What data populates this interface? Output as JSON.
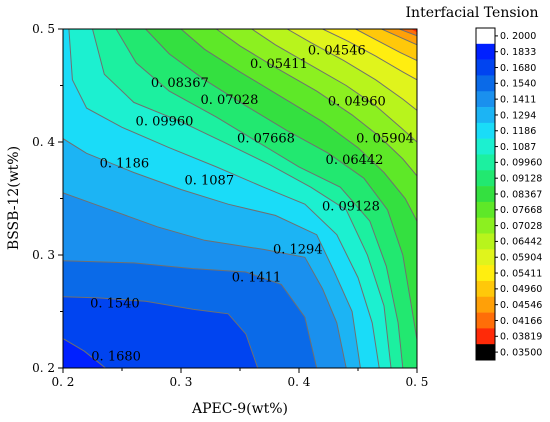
{
  "chart_data": {
    "type": "contour",
    "xlabel": "APEC-9(wt%)",
    "ylabel": "BSSB-12(wt%)",
    "xlim": [
      0.2,
      0.5
    ],
    "ylim": [
      0.2,
      0.5
    ],
    "x_ticks": [
      "0. 2",
      "0. 3",
      "0. 4",
      "0. 5"
    ],
    "y_ticks": [
      "0. 2",
      "0. 3",
      "0. 4",
      "0. 5"
    ],
    "legend_title": "Interfacial Tension",
    "legend_levels": [
      {
        "label": "0. 2000",
        "color": "#ffffff"
      },
      {
        "label": "0. 1833",
        "color": "#0020ff"
      },
      {
        "label": "0. 1680",
        "color": "#0044f0"
      },
      {
        "label": "0. 1540",
        "color": "#0a6ae8"
      },
      {
        "label": "0. 1411",
        "color": "#1a90ee"
      },
      {
        "label": "0. 1294",
        "color": "#1cb4f4"
      },
      {
        "label": "0. 1186",
        "color": "#1adcf8"
      },
      {
        "label": "0. 1087",
        "color": "#1cf0d0"
      },
      {
        "label": "0. 09960",
        "color": "#1cf0a0"
      },
      {
        "label": "0. 09128",
        "color": "#22e870"
      },
      {
        "label": "0. 08367",
        "color": "#34e040"
      },
      {
        "label": "0. 07668",
        "color": "#5ee828"
      },
      {
        "label": "0. 07028",
        "color": "#8cf020"
      },
      {
        "label": "0. 06442",
        "color": "#b8f41c"
      },
      {
        "label": "0. 05904",
        "color": "#e0f41c"
      },
      {
        "label": "0. 05411",
        "color": "#ffee10"
      },
      {
        "label": "0. 04960",
        "color": "#ffc80a"
      },
      {
        "label": "0. 04546",
        "color": "#ffa008"
      },
      {
        "label": "0. 04166",
        "color": "#ff6e08"
      },
      {
        "label": "0. 03819",
        "color": "#ff2a08"
      },
      {
        "label": "0. 03500",
        "color": "#000000"
      }
    ],
    "contour_labels": [
      {
        "text": "0. 04546",
        "x": 0.432,
        "y": 0.481
      },
      {
        "text": "0. 05411",
        "x": 0.383,
        "y": 0.469
      },
      {
        "text": "0. 08367",
        "x": 0.299,
        "y": 0.452
      },
      {
        "text": "0. 04960",
        "x": 0.449,
        "y": 0.436
      },
      {
        "text": "0. 07028",
        "x": 0.341,
        "y": 0.437
      },
      {
        "text": "0. 09960",
        "x": 0.286,
        "y": 0.418
      },
      {
        "text": "0. 07668",
        "x": 0.372,
        "y": 0.403
      },
      {
        "text": "0. 05904",
        "x": 0.473,
        "y": 0.403
      },
      {
        "text": "0. 06442",
        "x": 0.447,
        "y": 0.384
      },
      {
        "text": "0. 1186",
        "x": 0.252,
        "y": 0.381
      },
      {
        "text": "0. 1087",
        "x": 0.324,
        "y": 0.366
      },
      {
        "text": "0. 09128",
        "x": 0.444,
        "y": 0.343
      },
      {
        "text": "0. 1294",
        "x": 0.399,
        "y": 0.305
      },
      {
        "text": "0. 1411",
        "x": 0.364,
        "y": 0.28
      },
      {
        "text": "0. 1540",
        "x": 0.244,
        "y": 0.257
      },
      {
        "text": "0. 1680",
        "x": 0.245,
        "y": 0.21
      }
    ],
    "contour_lines": [
      {
        "color": "#0044f0",
        "points": [
          [
            0.2,
            0.226
          ],
          [
            0.218,
            0.215
          ],
          [
            0.236,
            0.2
          ]
        ]
      },
      {
        "color": "#0a6ae8",
        "points": [
          [
            0.2,
            0.263
          ],
          [
            0.23,
            0.262
          ],
          [
            0.27,
            0.259
          ],
          [
            0.31,
            0.252
          ],
          [
            0.34,
            0.248
          ],
          [
            0.355,
            0.23
          ],
          [
            0.365,
            0.2
          ]
        ]
      },
      {
        "color": "#1a90ee",
        "points": [
          [
            0.2,
            0.295
          ],
          [
            0.26,
            0.293
          ],
          [
            0.31,
            0.288
          ],
          [
            0.355,
            0.285
          ],
          [
            0.385,
            0.274
          ],
          [
            0.405,
            0.245
          ],
          [
            0.415,
            0.2
          ]
        ]
      },
      {
        "color": "#1cb4f4",
        "points": [
          [
            0.2,
            0.355
          ],
          [
            0.24,
            0.34
          ],
          [
            0.28,
            0.325
          ],
          [
            0.32,
            0.313
          ],
          [
            0.37,
            0.305
          ],
          [
            0.405,
            0.298
          ],
          [
            0.42,
            0.27
          ],
          [
            0.432,
            0.24
          ],
          [
            0.44,
            0.2
          ]
        ]
      },
      {
        "color": "#1adcf8",
        "points": [
          [
            0.2,
            0.403
          ],
          [
            0.22,
            0.39
          ],
          [
            0.26,
            0.373
          ],
          [
            0.3,
            0.358
          ],
          [
            0.34,
            0.345
          ],
          [
            0.38,
            0.335
          ],
          [
            0.415,
            0.318
          ],
          [
            0.43,
            0.285
          ],
          [
            0.445,
            0.25
          ],
          [
            0.452,
            0.2
          ]
        ]
      },
      {
        "color": "#1cf0d0",
        "points": [
          [
            0.205,
            0.5
          ],
          [
            0.208,
            0.455
          ],
          [
            0.22,
            0.43
          ],
          [
            0.25,
            0.413
          ],
          [
            0.29,
            0.395
          ],
          [
            0.33,
            0.378
          ],
          [
            0.37,
            0.36
          ],
          [
            0.405,
            0.345
          ],
          [
            0.432,
            0.318
          ],
          [
            0.45,
            0.28
          ],
          [
            0.462,
            0.24
          ],
          [
            0.468,
            0.2
          ]
        ]
      },
      {
        "color": "#1cf0a0",
        "points": [
          [
            0.225,
            0.5
          ],
          [
            0.235,
            0.46
          ],
          [
            0.26,
            0.435
          ],
          [
            0.3,
            0.418
          ],
          [
            0.34,
            0.398
          ],
          [
            0.375,
            0.38
          ],
          [
            0.41,
            0.36
          ],
          [
            0.44,
            0.34
          ],
          [
            0.458,
            0.3
          ],
          [
            0.472,
            0.255
          ],
          [
            0.478,
            0.2
          ]
        ]
      },
      {
        "color": "#22e870",
        "points": [
          [
            0.245,
            0.5
          ],
          [
            0.262,
            0.47
          ],
          [
            0.29,
            0.445
          ],
          [
            0.33,
            0.422
          ],
          [
            0.365,
            0.4
          ],
          [
            0.4,
            0.378
          ],
          [
            0.435,
            0.36
          ],
          [
            0.46,
            0.33
          ],
          [
            0.474,
            0.29
          ],
          [
            0.484,
            0.24
          ],
          [
            0.488,
            0.2
          ]
        ]
      },
      {
        "color": "#34e040",
        "points": [
          [
            0.27,
            0.5
          ],
          [
            0.29,
            0.478
          ],
          [
            0.32,
            0.455
          ],
          [
            0.355,
            0.432
          ],
          [
            0.39,
            0.41
          ],
          [
            0.425,
            0.39
          ],
          [
            0.455,
            0.368
          ],
          [
            0.475,
            0.34
          ],
          [
            0.488,
            0.3
          ],
          [
            0.496,
            0.25
          ],
          [
            0.5,
            0.225
          ]
        ]
      },
      {
        "color": "#5ee828",
        "points": [
          [
            0.3,
            0.5
          ],
          [
            0.32,
            0.482
          ],
          [
            0.35,
            0.462
          ],
          [
            0.385,
            0.44
          ],
          [
            0.42,
            0.418
          ],
          [
            0.45,
            0.395
          ],
          [
            0.472,
            0.373
          ],
          [
            0.49,
            0.35
          ],
          [
            0.5,
            0.33
          ]
        ]
      },
      {
        "color": "#8cf020",
        "points": [
          [
            0.33,
            0.5
          ],
          [
            0.35,
            0.485
          ],
          [
            0.38,
            0.466
          ],
          [
            0.415,
            0.445
          ],
          [
            0.445,
            0.424
          ],
          [
            0.468,
            0.405
          ],
          [
            0.488,
            0.385
          ],
          [
            0.5,
            0.37
          ]
        ]
      },
      {
        "color": "#b8f41c",
        "points": [
          [
            0.36,
            0.5
          ],
          [
            0.38,
            0.486
          ],
          [
            0.41,
            0.468
          ],
          [
            0.44,
            0.45
          ],
          [
            0.465,
            0.432
          ],
          [
            0.485,
            0.414
          ],
          [
            0.5,
            0.4
          ]
        ]
      },
      {
        "color": "#e0f41c",
        "points": [
          [
            0.39,
            0.5
          ],
          [
            0.41,
            0.488
          ],
          [
            0.438,
            0.472
          ],
          [
            0.465,
            0.455
          ],
          [
            0.488,
            0.438
          ],
          [
            0.5,
            0.428
          ]
        ]
      },
      {
        "color": "#ffee10",
        "points": [
          [
            0.42,
            0.5
          ],
          [
            0.44,
            0.49
          ],
          [
            0.465,
            0.476
          ],
          [
            0.488,
            0.462
          ],
          [
            0.5,
            0.455
          ]
        ]
      },
      {
        "color": "#ffc80a",
        "points": [
          [
            0.448,
            0.5
          ],
          [
            0.466,
            0.49
          ],
          [
            0.486,
            0.479
          ],
          [
            0.5,
            0.472
          ]
        ]
      },
      {
        "color": "#ffa008",
        "points": [
          [
            0.47,
            0.5
          ],
          [
            0.485,
            0.493
          ],
          [
            0.5,
            0.486
          ]
        ]
      },
      {
        "color": "#ff6e08",
        "points": [
          [
            0.485,
            0.5
          ],
          [
            0.5,
            0.494
          ]
        ]
      }
    ]
  }
}
